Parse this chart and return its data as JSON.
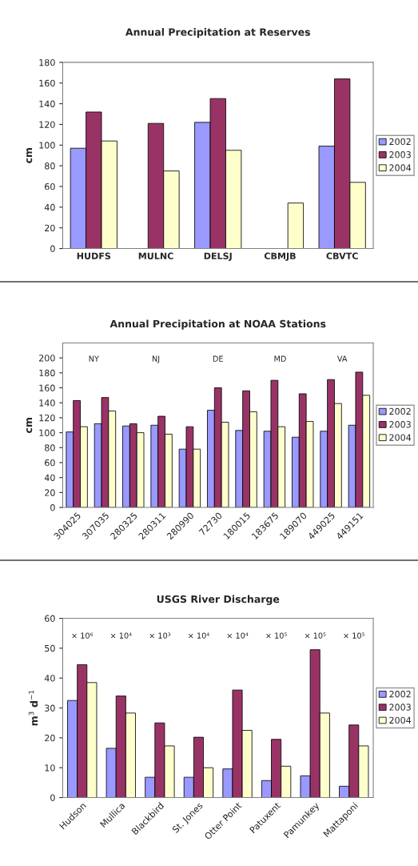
{
  "chart_data": [
    {
      "type": "bar",
      "title": "Annual Precipitation at Reserves",
      "ylabel": "cm",
      "categories": [
        "HUDFS",
        "MULNC",
        "DELSJ",
        "CBMJB",
        "CBVTC"
      ],
      "series": [
        {
          "name": "2002",
          "color": "#9999ff",
          "values": [
            97,
            null,
            122,
            null,
            99
          ]
        },
        {
          "name": "2003",
          "color": "#993366",
          "values": [
            132,
            121,
            145,
            null,
            164
          ]
        },
        {
          "name": "2004",
          "color": "#ffffcc",
          "values": [
            104,
            75,
            95,
            44,
            64
          ]
        }
      ],
      "ylim": [
        0,
        180
      ],
      "yticks": [
        0,
        20,
        40,
        60,
        80,
        100,
        120,
        140,
        160,
        180
      ],
      "legend": "right",
      "grid": false
    },
    {
      "type": "bar",
      "title": "Annual Precipitation at NOAA Stations",
      "ylabel": "cm",
      "categories": [
        "304025",
        "307035",
        "280325",
        "280311",
        "280990",
        "72730",
        "180015",
        "183675",
        "189070",
        "449025",
        "449151"
      ],
      "series": [
        {
          "name": "2002",
          "color": "#9999ff",
          "values": [
            101,
            112,
            109,
            110,
            78,
            130,
            103,
            102,
            94,
            102,
            110
          ]
        },
        {
          "name": "2003",
          "color": "#993366",
          "values": [
            143,
            147,
            112,
            122,
            108,
            160,
            156,
            170,
            152,
            171,
            181
          ]
        },
        {
          "name": "2004",
          "color": "#ffffcc",
          "values": [
            108,
            129,
            100,
            98,
            78,
            114,
            128,
            108,
            115,
            139,
            150
          ]
        }
      ],
      "annotations": [
        "NY",
        "NJ",
        "DE",
        "MD",
        "VA"
      ],
      "ylim": [
        0,
        220
      ],
      "yticks": [
        0,
        20,
        40,
        60,
        80,
        100,
        120,
        140,
        160,
        180,
        200
      ],
      "legend": "right",
      "grid": false
    },
    {
      "type": "bar",
      "title": "USGS River Discharge",
      "ylabel": "m$^{3}$ d$^{−1}$",
      "categories": [
        "Hudson",
        "Mullica",
        "Blackbird",
        "St. Jones",
        "Otter Point",
        "Patuxent",
        "Pamunkey",
        "Mattaponi"
      ],
      "series": [
        {
          "name": "2002",
          "color": "#9999ff",
          "values": [
            32.5,
            16.5,
            6.8,
            6.8,
            9.6,
            5.7,
            7.3,
            3.8
          ]
        },
        {
          "name": "2003",
          "color": "#993366",
          "values": [
            44.5,
            34,
            25,
            20.2,
            36,
            19.5,
            49.5,
            24.3
          ]
        },
        {
          "name": "2004",
          "color": "#ffffcc",
          "values": [
            38.5,
            28.3,
            17.3,
            10,
            22.5,
            10.5,
            28.3,
            17.3
          ]
        }
      ],
      "annotations": [
        "× 10⁶",
        "× 10⁴",
        "× 10³",
        "× 10⁴",
        "× 10⁴",
        "× 10⁵",
        "× 10⁵",
        "× 10⁵"
      ],
      "ylim": [
        0,
        60
      ],
      "yticks": [
        0,
        10,
        20,
        30,
        40,
        50,
        60
      ],
      "legend": "right",
      "grid": false
    }
  ]
}
